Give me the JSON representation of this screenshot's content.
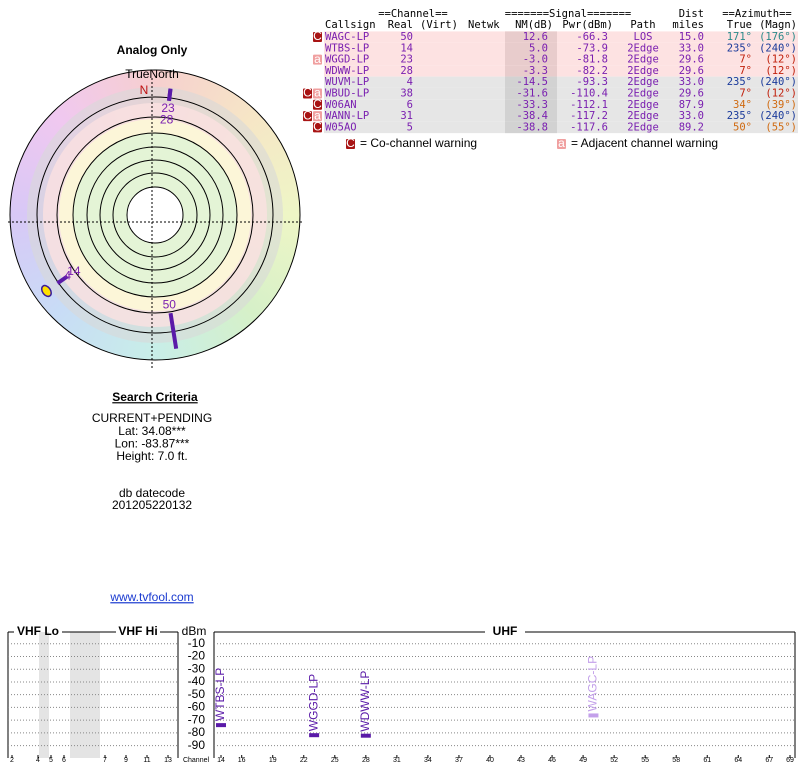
{
  "header": {
    "title": "Analog Only",
    "true_north": "TrueNorth",
    "north": "N"
  },
  "table": {
    "group_headers": [
      "==Channel==",
      "=======Signal=======",
      "Dist",
      "==Azimuth=="
    ],
    "columns": [
      "Callsign",
      "Real",
      "(Virt)",
      "Netwk",
      "NM(dB)",
      "Pwr(dBm)",
      "Path",
      "miles",
      "True",
      "(Magn)"
    ],
    "flag_colors": {
      "C": "#a81414",
      "a": "#f0a0a0"
    },
    "path_colors": {
      "LOS": "#c3a0ea",
      "2Edge": "#5a1aa8"
    },
    "rows": [
      {
        "flags": [
          "C"
        ],
        "callsign": "WAGC-LP",
        "real": "50",
        "nm": "12.6",
        "pwr": "-66.3",
        "path": "LOS",
        "dist": "15.0",
        "true_az": "171°",
        "magn_az": "(176°)",
        "az_color": "#2a8a8a"
      },
      {
        "flags": [],
        "callsign": "WTBS-LP",
        "real": "14",
        "nm": "5.0",
        "pwr": "-73.9",
        "path": "2Edge",
        "dist": "33.0",
        "true_az": "235°",
        "magn_az": "(240°)",
        "az_color": "#1a3a9a"
      },
      {
        "flags": [
          "a"
        ],
        "callsign": "WGGD-LP",
        "real": "23",
        "nm": "-3.0",
        "pwr": "-81.8",
        "path": "2Edge",
        "dist": "29.6",
        "true_az": "7°",
        "magn_az": "(12°)",
        "az_color": "#c0200c"
      },
      {
        "flags": [],
        "callsign": "WDWW-LP",
        "real": "28",
        "nm": "-3.3",
        "pwr": "-82.2",
        "path": "2Edge",
        "dist": "29.6",
        "true_az": "7°",
        "magn_az": "(12°)",
        "az_color": "#c0200c"
      },
      {
        "flags": [],
        "callsign": "WUVM-LP",
        "real": "4",
        "nm": "-14.5",
        "pwr": "-93.3",
        "path": "2Edge",
        "dist": "33.0",
        "true_az": "235°",
        "magn_az": "(240°)",
        "az_color": "#1a3a9a"
      },
      {
        "flags": [
          "C",
          "a"
        ],
        "callsign": "WBUD-LP",
        "real": "38",
        "nm": "-31.6",
        "pwr": "-110.4",
        "path": "2Edge",
        "dist": "29.6",
        "true_az": "7°",
        "magn_az": "(12°)",
        "az_color": "#c0200c"
      },
      {
        "flags": [
          "C"
        ],
        "callsign": "W06AN",
        "real": "6",
        "nm": "-33.3",
        "pwr": "-112.1",
        "path": "2Edge",
        "dist": "87.9",
        "true_az": "34°",
        "magn_az": "(39°)",
        "az_color": "#d06a10"
      },
      {
        "flags": [
          "C",
          "a"
        ],
        "callsign": "WANN-LP",
        "real": "31",
        "nm": "-38.4",
        "pwr": "-117.2",
        "path": "2Edge",
        "dist": "33.0",
        "true_az": "235°",
        "magn_az": "(240°)",
        "az_color": "#1a3a9a"
      },
      {
        "flags": [
          "C"
        ],
        "callsign": "W05AO",
        "real": "5",
        "nm": "-38.8",
        "pwr": "-117.6",
        "path": "2Edge",
        "dist": "89.2",
        "true_az": "50°",
        "magn_az": "(55°)",
        "az_color": "#d06a10"
      }
    ],
    "legend": [
      {
        "flag": "C",
        "text": "= Co-channel warning"
      },
      {
        "flag": "a",
        "text": "= Adjacent channel warning"
      }
    ]
  },
  "search": {
    "title": "Search Criteria",
    "lines": [
      "CURRENT+PENDING",
      "Lat: 34.08***",
      "Lon: -83.87***",
      "Height: 7.0 ft."
    ],
    "db_label": "db datecode",
    "db_value": "201205220132",
    "link": "www.tvfool.com"
  },
  "spectrum": {
    "ylabel": "dBm",
    "xlabel": "Channel",
    "ylim": [
      -95,
      0
    ],
    "yticks": [
      -10,
      -20,
      -30,
      -40,
      -50,
      -60,
      -70,
      -80,
      -90
    ],
    "bands": [
      {
        "name": "VHF Lo",
        "xlim": [
          2,
          6
        ],
        "channels": [
          2,
          4,
          5,
          6
        ]
      },
      {
        "name": "VHF Hi",
        "xlim": [
          7,
          13
        ],
        "channels": [
          7,
          9,
          11,
          13
        ]
      },
      {
        "name": "UHF",
        "xlim": [
          14,
          69
        ],
        "channels": [
          14,
          16,
          19,
          22,
          25,
          28,
          31,
          34,
          37,
          40,
          43,
          46,
          49,
          52,
          55,
          58,
          61,
          64,
          67,
          69
        ]
      }
    ]
  }
}
